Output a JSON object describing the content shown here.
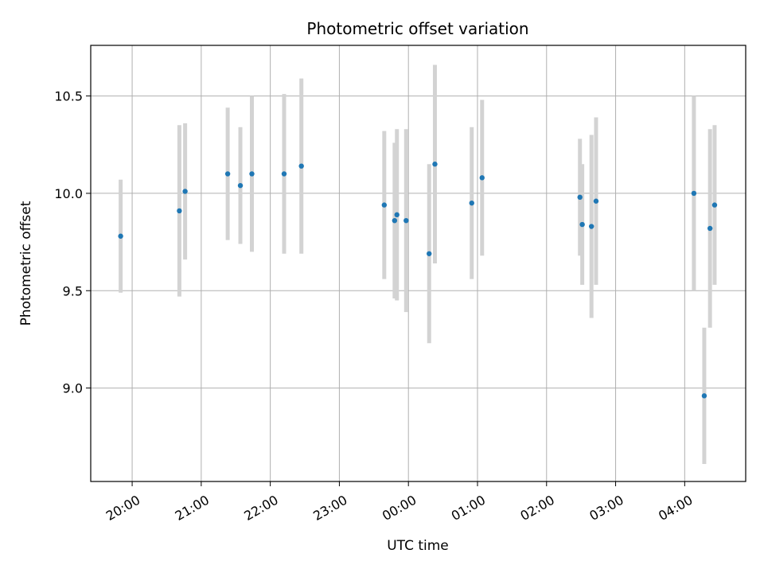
{
  "chart_data": {
    "type": "scatter",
    "title": "Photometric offset variation",
    "xlabel": "UTC time",
    "ylabel": "Photometric offset",
    "grid": true,
    "xlim": [
      "19:24",
      "04:53"
    ],
    "ylim": [
      8.52,
      10.76
    ],
    "x_ticks": [
      "20:00",
      "21:00",
      "22:00",
      "23:00",
      "00:00",
      "01:00",
      "02:00",
      "03:00",
      "04:00"
    ],
    "y_ticks": [
      "9.0",
      "9.5",
      "10.0",
      "10.5"
    ],
    "point_color": "#1f77b4",
    "errorbar_color": "#d3d3d3",
    "series": [
      {
        "points": [
          {
            "t": "19:50",
            "y": 9.78,
            "err": 0.29
          },
          {
            "t": "20:41",
            "y": 9.91,
            "err": 0.44
          },
          {
            "t": "20:46",
            "y": 10.01,
            "err": 0.35
          },
          {
            "t": "21:23",
            "y": 10.1,
            "err": 0.34
          },
          {
            "t": "21:34",
            "y": 10.04,
            "err": 0.3
          },
          {
            "t": "21:44",
            "y": 10.1,
            "err": 0.4
          },
          {
            "t": "22:12",
            "y": 10.1,
            "err": 0.41
          },
          {
            "t": "22:27",
            "y": 10.14,
            "err": 0.45
          },
          {
            "t": "23:39",
            "y": 9.94,
            "err": 0.38
          },
          {
            "t": "23:48",
            "y": 9.86,
            "err": 0.4
          },
          {
            "t": "23:50",
            "y": 9.89,
            "err": 0.44
          },
          {
            "t": "23:58",
            "y": 9.86,
            "err": 0.47
          },
          {
            "t": "00:18",
            "y": 9.69,
            "err": 0.46
          },
          {
            "t": "00:23",
            "y": 10.15,
            "err": 0.51
          },
          {
            "t": "00:55",
            "y": 9.95,
            "err": 0.39
          },
          {
            "t": "01:04",
            "y": 10.08,
            "err": 0.4
          },
          {
            "t": "02:29",
            "y": 9.98,
            "err": 0.3
          },
          {
            "t": "02:31",
            "y": 9.84,
            "err": 0.31
          },
          {
            "t": "02:39",
            "y": 9.83,
            "err": 0.47
          },
          {
            "t": "02:43",
            "y": 9.96,
            "err": 0.43
          },
          {
            "t": "04:08",
            "y": 10.0,
            "err": 0.5
          },
          {
            "t": "04:17",
            "y": 8.96,
            "err": 0.35
          },
          {
            "t": "04:22",
            "y": 9.82,
            "err": 0.51
          },
          {
            "t": "04:26",
            "y": 9.94,
            "err": 0.41
          }
        ]
      }
    ]
  }
}
